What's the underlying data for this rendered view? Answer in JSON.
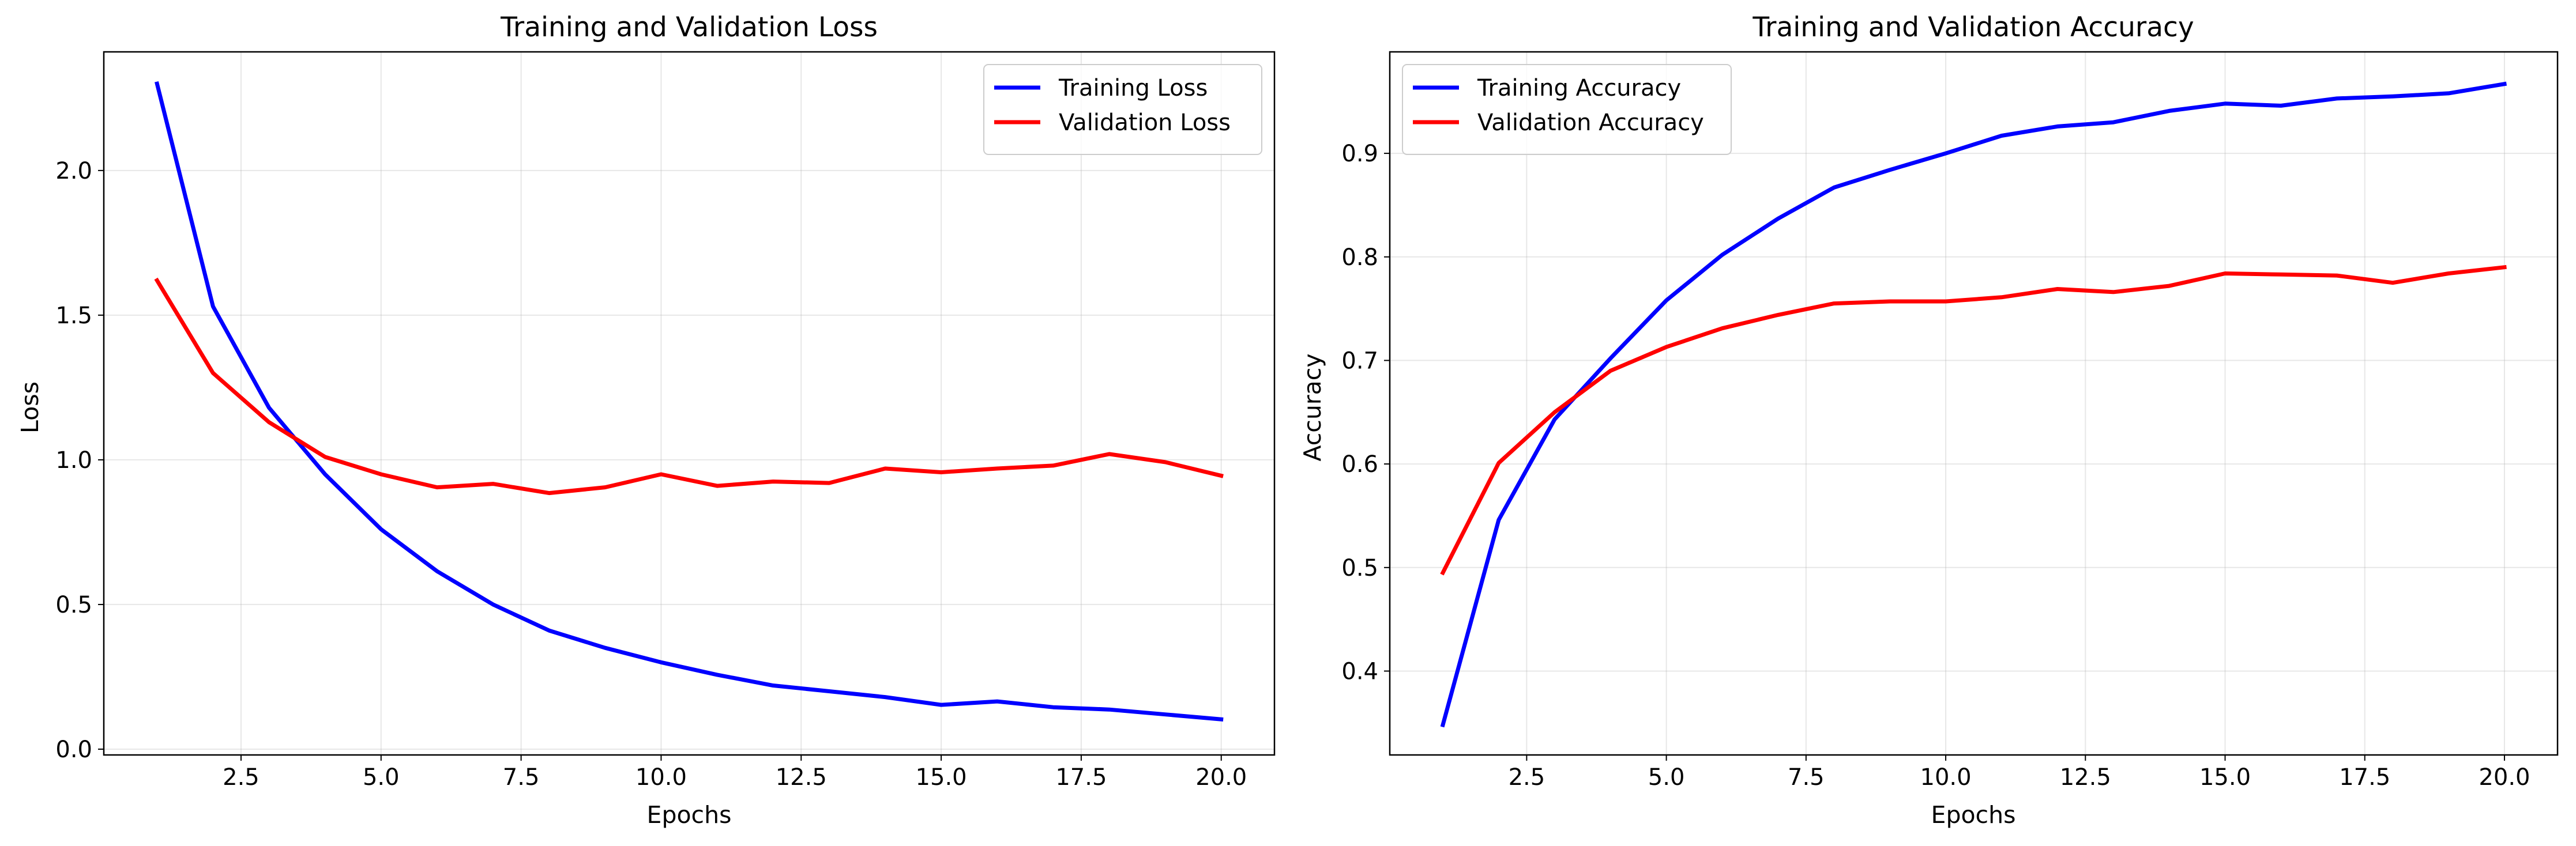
{
  "chart_data": [
    {
      "type": "line",
      "title": "Training and Validation Loss",
      "xlabel": "Epochs",
      "ylabel": "Loss",
      "xlim": [
        0.05,
        20.95
      ],
      "ylim": [
        -0.02,
        2.41
      ],
      "xticks": [
        2.5,
        5.0,
        7.5,
        10.0,
        12.5,
        15.0,
        17.5,
        20.0
      ],
      "xtick_labels": [
        "2.5",
        "5.0",
        "7.5",
        "10.0",
        "12.5",
        "15.0",
        "17.5",
        "20.0"
      ],
      "yticks": [
        0.0,
        0.5,
        1.0,
        1.5,
        2.0
      ],
      "ytick_labels": [
        "0.0",
        "0.5",
        "1.0",
        "1.5",
        "2.0"
      ],
      "grid": true,
      "legend_position": "upper right",
      "x": [
        1,
        2,
        3,
        4,
        5,
        6,
        7,
        8,
        9,
        10,
        11,
        12,
        13,
        14,
        15,
        16,
        17,
        18,
        19,
        20
      ],
      "series": [
        {
          "name": "Training Loss",
          "color": "#0000ff",
          "values": [
            2.3,
            1.53,
            1.18,
            0.95,
            0.76,
            0.615,
            0.5,
            0.41,
            0.35,
            0.3,
            0.257,
            0.22,
            0.2,
            0.18,
            0.153,
            0.165,
            0.145,
            0.137,
            0.12,
            0.103
          ]
        },
        {
          "name": "Validation Loss",
          "color": "#ff0000",
          "values": [
            1.62,
            1.3,
            1.13,
            1.01,
            0.95,
            0.905,
            0.917,
            0.885,
            0.905,
            0.95,
            0.91,
            0.925,
            0.92,
            0.97,
            0.957,
            0.97,
            0.98,
            1.02,
            0.992,
            0.945
          ]
        }
      ]
    },
    {
      "type": "line",
      "title": "Training and Validation Accuracy",
      "xlabel": "Epochs",
      "ylabel": "Accuracy",
      "xlim": [
        0.05,
        20.95
      ],
      "ylim": [
        0.319,
        0.998
      ],
      "xticks": [
        2.5,
        5.0,
        7.5,
        10.0,
        12.5,
        15.0,
        17.5,
        20.0
      ],
      "xtick_labels": [
        "2.5",
        "5.0",
        "7.5",
        "10.0",
        "12.5",
        "15.0",
        "17.5",
        "20.0"
      ],
      "yticks": [
        0.4,
        0.5,
        0.6,
        0.7,
        0.8,
        0.9
      ],
      "ytick_labels": [
        "0.4",
        "0.5",
        "0.6",
        "0.7",
        "0.8",
        "0.9"
      ],
      "grid": true,
      "legend_position": "upper left",
      "x": [
        1,
        2,
        3,
        4,
        5,
        6,
        7,
        8,
        9,
        10,
        11,
        12,
        13,
        14,
        15,
        16,
        17,
        18,
        19,
        20
      ],
      "series": [
        {
          "name": "Training Accuracy",
          "color": "#0000ff",
          "values": [
            0.348,
            0.546,
            0.643,
            0.702,
            0.758,
            0.802,
            0.837,
            0.867,
            0.884,
            0.9,
            0.917,
            0.926,
            0.93,
            0.941,
            0.948,
            0.946,
            0.953,
            0.955,
            0.958,
            0.967
          ]
        },
        {
          "name": "Validation Accuracy",
          "color": "#ff0000",
          "values": [
            0.495,
            0.601,
            0.65,
            0.69,
            0.713,
            0.731,
            0.744,
            0.755,
            0.757,
            0.757,
            0.761,
            0.769,
            0.766,
            0.772,
            0.784,
            0.783,
            0.782,
            0.775,
            0.784,
            0.79
          ]
        }
      ]
    }
  ]
}
